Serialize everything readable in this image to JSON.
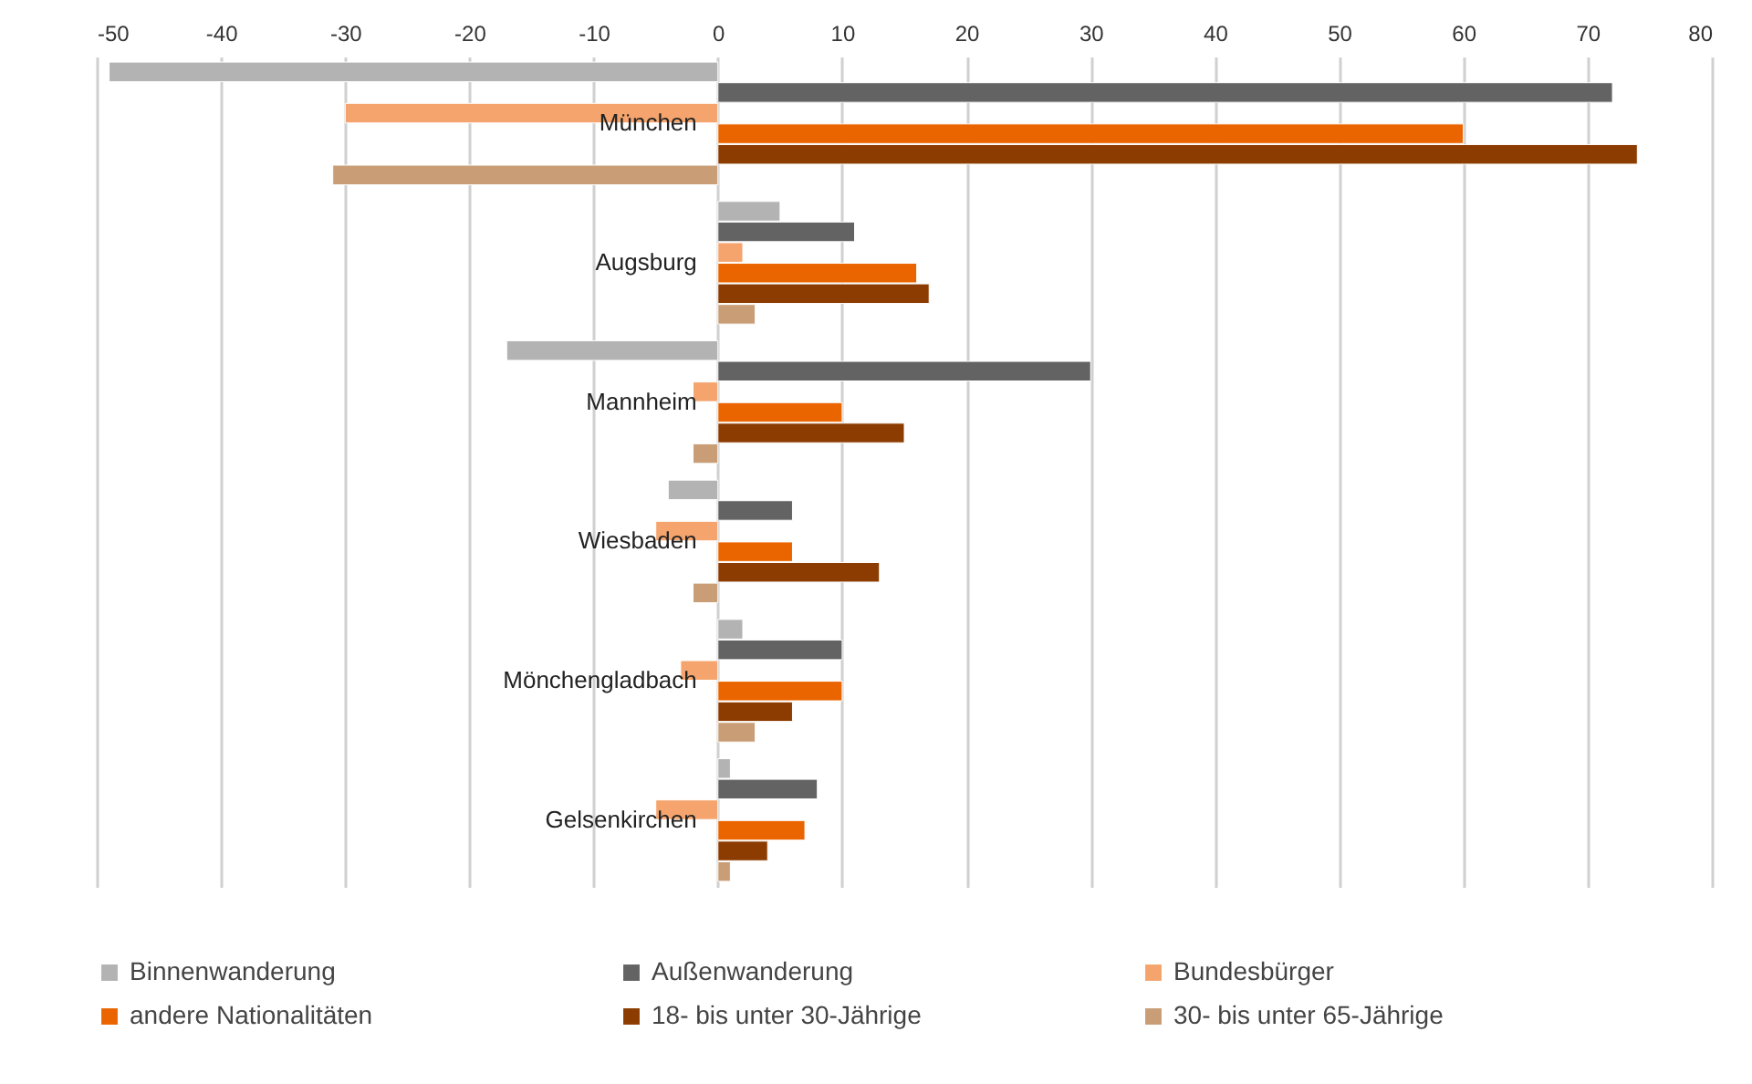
{
  "chart_data": {
    "type": "bar",
    "orientation": "horizontal",
    "categories": [
      "München",
      "Augsburg",
      "Mannheim",
      "Wiesbaden",
      "Mönchengladbach",
      "Gelsenkirchen"
    ],
    "series": [
      {
        "name": "Binnenwanderung",
        "color": "#b3b3b3",
        "values": [
          -49,
          5,
          -17,
          -4,
          2,
          1
        ]
      },
      {
        "name": "Außenwanderung",
        "color": "#636363",
        "values": [
          72,
          11,
          30,
          6,
          10,
          8
        ]
      },
      {
        "name": "Bundesbürger",
        "color": "#f4a46c",
        "values": [
          -30,
          2,
          -2,
          -5,
          -3,
          -5
        ]
      },
      {
        "name": "andere Nationalitäten",
        "color": "#ea6500",
        "values": [
          60,
          16,
          10,
          6,
          10,
          7
        ]
      },
      {
        "name": "18- bis unter 30-Jährige",
        "color": "#8c3c00",
        "values": [
          74,
          17,
          15,
          13,
          6,
          4
        ]
      },
      {
        "name": "30- bis unter 65-Jährige",
        "color": "#c99e76",
        "values": [
          -31,
          3,
          -2,
          -2,
          3,
          1
        ]
      }
    ],
    "xlim": [
      -50,
      80
    ],
    "xticks": [
      -50,
      -40,
      -30,
      -20,
      -10,
      0,
      10,
      20,
      30,
      40,
      50,
      60,
      70,
      80
    ],
    "grid": "x",
    "legend": "bottom"
  }
}
